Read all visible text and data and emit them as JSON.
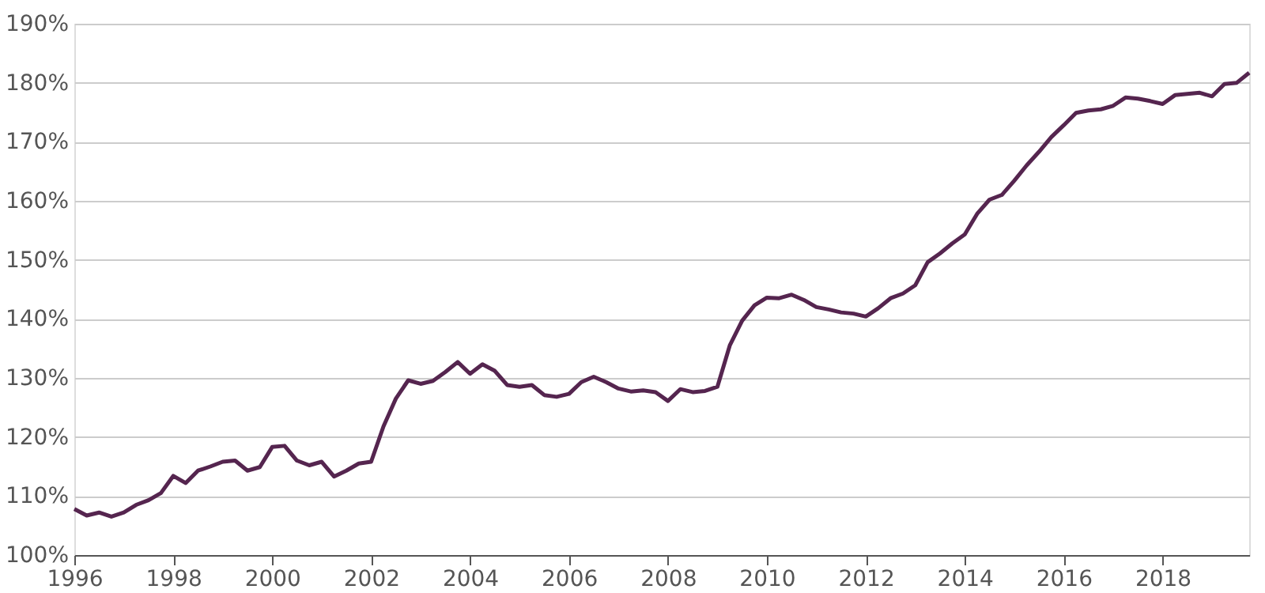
{
  "chart_data": {
    "type": "line",
    "x": [
      1996,
      1996.25,
      1996.5,
      1996.75,
      1997,
      1997.25,
      1997.5,
      1997.75,
      1998,
      1998.25,
      1998.5,
      1998.75,
      1999,
      1999.25,
      1999.5,
      1999.75,
      2000,
      2000.25,
      2000.5,
      2000.75,
      2001,
      2001.25,
      2001.5,
      2001.75,
      2002,
      2002.25,
      2002.5,
      2002.75,
      2003,
      2003.25,
      2003.5,
      2003.75,
      2004,
      2004.25,
      2004.5,
      2004.75,
      2005,
      2005.25,
      2005.5,
      2005.75,
      2006,
      2006.25,
      2006.5,
      2006.75,
      2007,
      2007.25,
      2007.5,
      2007.75,
      2008,
      2008.25,
      2008.5,
      2008.75,
      2009,
      2009.25,
      2009.5,
      2009.75,
      2010,
      2010.25,
      2010.5,
      2010.75,
      2011,
      2011.25,
      2011.5,
      2011.75,
      2012,
      2012.25,
      2012.5,
      2012.75,
      2013,
      2013.25,
      2013.5,
      2013.75,
      2014,
      2014.25,
      2014.5,
      2014.75,
      2015,
      2015.25,
      2015.5,
      2015.75,
      2016,
      2016.25,
      2016.5,
      2016.75,
      2017,
      2017.25,
      2017.5,
      2017.75,
      2018,
      2018.25,
      2018.5,
      2018.75,
      2019,
      2019.25,
      2019.5,
      2019.75
    ],
    "series": [
      {
        "color": "#55254f",
        "values": [
          107.8,
          106.7,
          107.2,
          106.5,
          107.2,
          108.5,
          109.3,
          110.5,
          113.4,
          112.2,
          114.3,
          115.0,
          115.8,
          116.0,
          114.3,
          114.9,
          118.3,
          118.5,
          116.0,
          115.2,
          115.8,
          113.3,
          114.3,
          115.5,
          115.8,
          121.8,
          126.5,
          129.6,
          129.0,
          129.5,
          131.0,
          132.7,
          130.7,
          132.3,
          131.2,
          128.8,
          128.5,
          128.8,
          127.1,
          126.8,
          127.3,
          129.3,
          130.2,
          129.3,
          128.2,
          127.7,
          127.9,
          127.6,
          126.1,
          128.1,
          127.6,
          127.8,
          128.5,
          135.5,
          139.7,
          142.3,
          143.6,
          143.5,
          144.1,
          143.2,
          142.0,
          141.6,
          141.1,
          140.9,
          140.4,
          141.8,
          143.5,
          144.3,
          145.7,
          149.6,
          151.1,
          152.8,
          154.3,
          157.8,
          160.2,
          161.0,
          163.4,
          166.0,
          168.3,
          170.8,
          172.8,
          174.9,
          175.3,
          175.5,
          176.1,
          177.5,
          177.3,
          176.9,
          176.4,
          177.9,
          178.1,
          178.3,
          177.7,
          179.8,
          180.0,
          181.7
        ]
      }
    ],
    "xlim": [
      1996,
      2019.75
    ],
    "xticks": [
      1996,
      1998,
      2000,
      2002,
      2004,
      2006,
      2008,
      2010,
      2012,
      2014,
      2016,
      2018
    ],
    "ylim": [
      100,
      190
    ],
    "yticks": [
      {
        "value": 100,
        "label": "100%"
      },
      {
        "value": 110,
        "label": "110%"
      },
      {
        "value": 120,
        "label": "120%"
      },
      {
        "value": 130,
        "label": "130%"
      },
      {
        "value": 140,
        "label": "140%"
      },
      {
        "value": 150,
        "label": "150%"
      },
      {
        "value": 160,
        "label": "160%"
      },
      {
        "value": 170,
        "label": "170%"
      },
      {
        "value": 180,
        "label": "180%"
      },
      {
        "value": 190,
        "label": "190%"
      }
    ],
    "grid": "y",
    "marker": "none",
    "line_style": "solid"
  }
}
